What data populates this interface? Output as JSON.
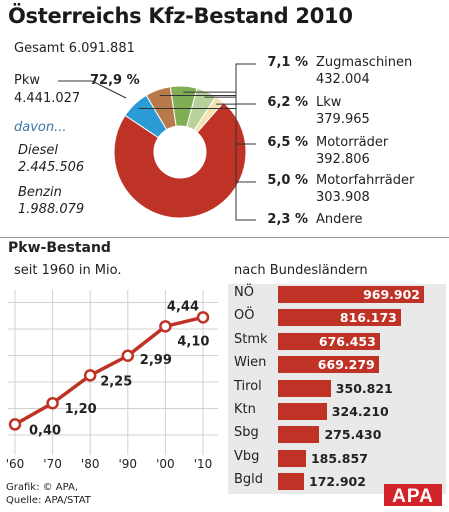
{
  "title": "Österreichs Kfz-Bestand 2010",
  "total_label": "Gesamt 6.091.881",
  "pkw": {
    "label": "Pkw",
    "value": "4.441.027",
    "pct": "72,9 %"
  },
  "davon": "davon...",
  "diesel": {
    "label": "Diesel",
    "value": "2.445.506"
  },
  "benzin": {
    "label": "Benzin",
    "value": "1.988.079"
  },
  "legend": [
    {
      "pct": "7,1 %",
      "name": "Zugmaschinen",
      "value": "432.004"
    },
    {
      "pct": "6,2 %",
      "name": "Lkw",
      "value": "379.965"
    },
    {
      "pct": "6,5 %",
      "name": "Motorräder",
      "value": "392.806"
    },
    {
      "pct": "5,0 %",
      "name": "Motorfahrräder",
      "value": "303.908"
    },
    {
      "pct": "2,3 %",
      "name": "Andere",
      "value": ""
    }
  ],
  "section2_title": "Pkw-Bestand",
  "line_subtitle": "seit 1960 in Mio.",
  "bar_subtitle": "nach Bundesländern",
  "footer_line1": "Grafik: © APA,",
  "footer_line2": "Quelle: APA/STAT",
  "logo_text": "APA",
  "colors": {
    "red": "#be3326",
    "blue": "#2a9bd4",
    "brown": "#b87a4b",
    "green": "#7fae55",
    "lightgreen": "#b9d29c",
    "cream": "#f4e3b0",
    "grey_panel": "#e9e9e9"
  },
  "chart_data": [
    {
      "type": "pie",
      "title": "Österreichs Kfz-Bestand 2010",
      "categories": [
        "Pkw",
        "Zugmaschinen",
        "Lkw",
        "Motorräder",
        "Motorfahrräder",
        "Andere"
      ],
      "values": [
        72.9,
        7.1,
        6.2,
        6.5,
        5.0,
        2.3
      ],
      "colors": [
        "#be3326",
        "#2a9bd4",
        "#b87a4b",
        "#7fae55",
        "#b9d29c",
        "#f4e3b0"
      ]
    },
    {
      "type": "line",
      "title": "Pkw-Bestand",
      "subtitle": "seit 1960 in Mio.",
      "x": [
        "'60",
        "'70",
        "'80",
        "'90",
        "'00",
        "'10"
      ],
      "series": [
        {
          "values": [
            0.4,
            1.2,
            2.25,
            2.99,
            4.1,
            4.44
          ],
          "labels": [
            "0,40",
            "1,20",
            "2,25",
            "2,99",
            "4,10",
            "4,44"
          ]
        }
      ],
      "ylim": [
        0,
        5
      ],
      "grid": true
    },
    {
      "type": "bar",
      "subtitle": "nach Bundesländern",
      "categories": [
        "NÖ",
        "OÖ",
        "Stmk",
        "Wien",
        "Tirol",
        "Ktn",
        "Sbg",
        "Vbg",
        "Bgld"
      ],
      "values": [
        969902,
        816173,
        676453,
        669279,
        350821,
        324210,
        275430,
        185857,
        172902
      ],
      "labels": [
        "969.902",
        "816.173",
        "676.453",
        "669.279",
        "350.821",
        "324.210",
        "275.430",
        "185.857",
        "172.902"
      ]
    }
  ]
}
